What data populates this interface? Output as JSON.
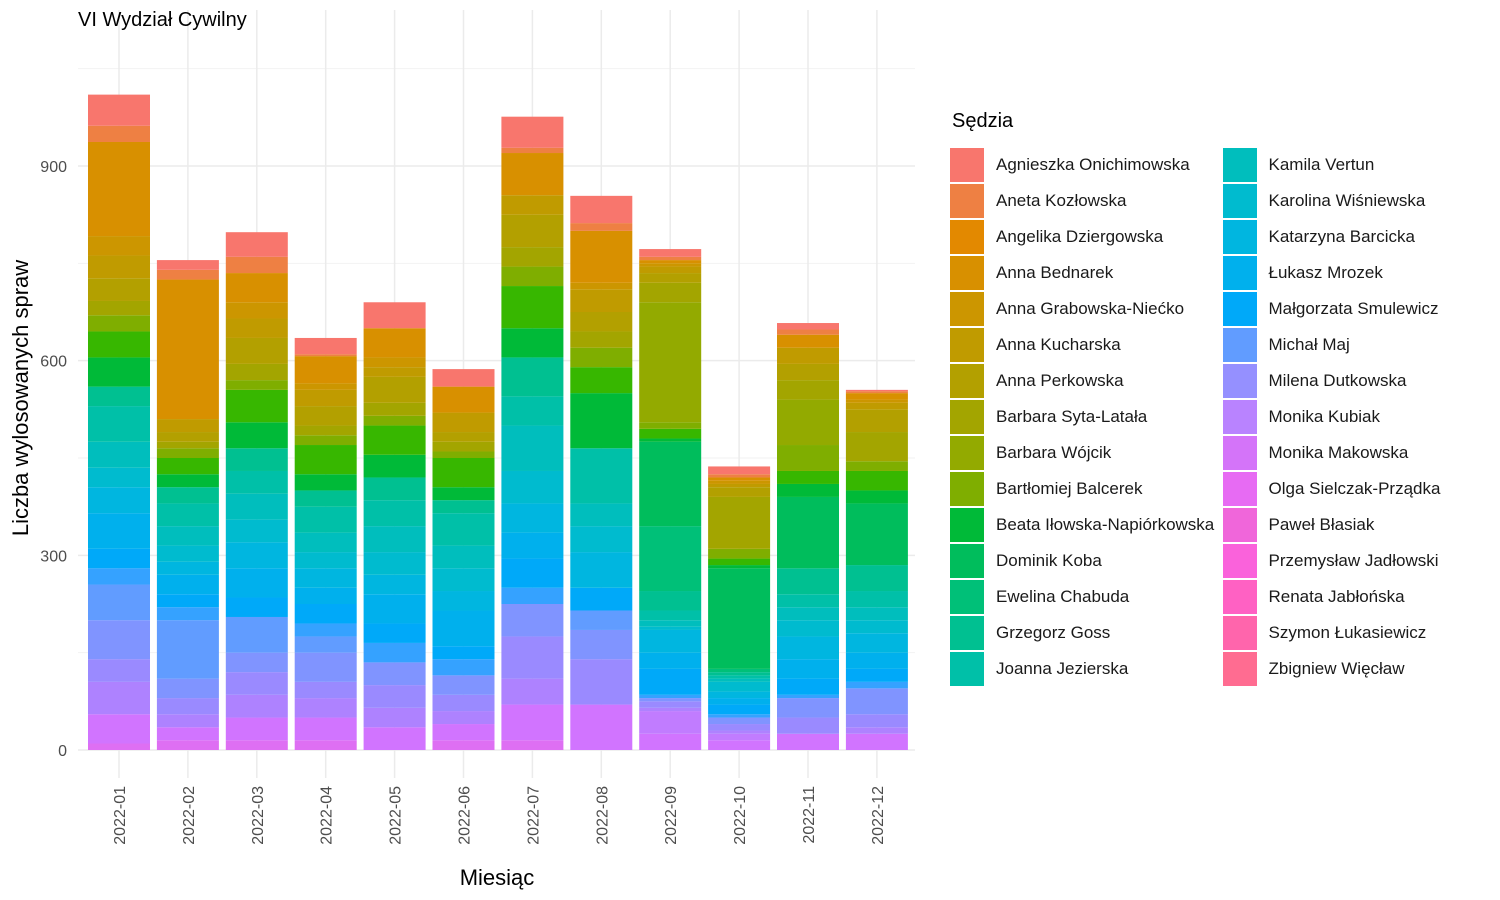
{
  "chart_data": {
    "type": "bar",
    "stacked": true,
    "title": "VI Wydział Cywilny",
    "xlabel": "Miesiąc",
    "ylabel": "Liczba wylosowanych spraw",
    "ylim": [
      0,
      1110
    ],
    "yticks": [
      0,
      300,
      600,
      900
    ],
    "grid": true,
    "legend_position": "right",
    "legend_title": "Sędzia",
    "categories": [
      "2022-01",
      "2022-02",
      "2022-03",
      "2022-04",
      "2022-05",
      "2022-06",
      "2022-07",
      "2022-08",
      "2022-09",
      "2022-10",
      "2022-11",
      "2022-12"
    ],
    "series": [
      {
        "name": "Agnieszka Onichimowska",
        "color": "#F8766D",
        "values": [
          48,
          15,
          38,
          25,
          40,
          27,
          48,
          42,
          12,
          12,
          10,
          2
        ]
      },
      {
        "name": "Aneta Kozłowska",
        "color": "#EE8043",
        "values": [
          25,
          15,
          25,
          3,
          0,
          0,
          8,
          12,
          5,
          5,
          8,
          3
        ]
      },
      {
        "name": "Angelika Dziergowska",
        "color": "#E38900",
        "values": [
          0,
          0,
          0,
          0,
          0,
          0,
          0,
          0,
          0,
          0,
          0,
          0
        ]
      },
      {
        "name": "Anna Bednarek",
        "color": "#D89000",
        "values": [
          145,
          215,
          45,
          42,
          45,
          40,
          65,
          80,
          5,
          5,
          20,
          10
        ]
      },
      {
        "name": "Anna Grabowska-Niećko",
        "color": "#CC9600",
        "values": [
          30,
          0,
          25,
          10,
          15,
          0,
          0,
          10,
          5,
          5,
          0,
          5
        ]
      },
      {
        "name": "Anna Kucharska",
        "color": "#C09B00",
        "values": [
          35,
          20,
          30,
          25,
          15,
          30,
          30,
          35,
          10,
          5,
          25,
          10
        ]
      },
      {
        "name": "Anna Perkowska",
        "color": "#B3A000",
        "values": [
          35,
          15,
          40,
          30,
          40,
          15,
          50,
          30,
          15,
          15,
          25,
          35
        ]
      },
      {
        "name": "Barbara Syta-Latała",
        "color": "#A3A500",
        "values": [
          22,
          10,
          25,
          15,
          20,
          15,
          30,
          25,
          30,
          80,
          30,
          45
        ]
      },
      {
        "name": "Barbara Wójcik",
        "color": "#93AA00",
        "values": [
          0,
          0,
          0,
          0,
          0,
          0,
          0,
          0,
          185,
          0,
          70,
          0
        ]
      },
      {
        "name": "Bartłomiej Balcerek",
        "color": "#7FAE00",
        "values": [
          25,
          15,
          15,
          15,
          15,
          10,
          30,
          30,
          10,
          15,
          40,
          15
        ]
      },
      {
        "name": "Beata Iłowska-Napiórkowska",
        "color": "#65B300",
        "values": [
          0,
          0,
          0,
          0,
          0,
          0,
          0,
          0,
          0,
          0,
          0,
          0
        ]
      },
      {
        "name": "Dominik Koba",
        "color": "#37B700",
        "values": [
          40,
          25,
          50,
          45,
          45,
          45,
          65,
          40,
          15,
          10,
          20,
          30
        ]
      },
      {
        "name": "Ewelina Chabuda",
        "color": "#00BA38",
        "values": [
          45,
          20,
          40,
          25,
          35,
          20,
          45,
          85,
          5,
          5,
          20,
          20
        ]
      },
      {
        "name": "Grzegorz Goss",
        "color": "#00BD5C",
        "values": [
          0,
          0,
          0,
          0,
          0,
          0,
          0,
          0,
          130,
          155,
          110,
          95
        ]
      },
      {
        "name": "Joanna Jezierska",
        "color": "#00C078",
        "values": [
          0,
          0,
          0,
          0,
          0,
          0,
          0,
          0,
          100,
          5,
          0,
          0
        ]
      },
      {
        "name": "Kamila Vertun",
        "color": "#00C091",
        "values": [
          30,
          25,
          35,
          25,
          35,
          20,
          60,
          0,
          30,
          5,
          40,
          40
        ]
      },
      {
        "name": "Karolina Wiśniewska",
        "color": "#00C0A8",
        "values": [
          55,
          35,
          35,
          40,
          40,
          50,
          45,
          85,
          15,
          5,
          20,
          25
        ]
      },
      {
        "name": "Katarzyna Barcicka",
        "color": "#00BEBD",
        "values": [
          40,
          30,
          40,
          30,
          40,
          35,
          70,
          35,
          10,
          5,
          20,
          20
        ]
      },
      {
        "name": "Łukasz Mrozek",
        "color": "#00BBCF",
        "values": [
          30,
          25,
          35,
          25,
          35,
          35,
          50,
          40,
          5,
          15,
          25,
          20
        ]
      },
      {
        "name": "Małgorzata Smulewicz",
        "color": "#00B6E0",
        "values": [
          40,
          20,
          40,
          30,
          30,
          30,
          45,
          55,
          35,
          10,
          35,
          30
        ]
      },
      {
        "name": "Michał Maj",
        "color": "#00B0ED",
        "values": [
          55,
          30,
          45,
          25,
          45,
          55,
          40,
          0,
          25,
          10,
          30,
          25
        ]
      },
      {
        "name": "Milena Dutkowska",
        "color": "#00A9F9",
        "values": [
          30,
          20,
          30,
          30,
          30,
          20,
          45,
          35,
          40,
          15,
          25,
          20
        ]
      },
      {
        "name": "Monika Kubiak",
        "color": "#35A2FF",
        "values": [
          25,
          20,
          0,
          20,
          30,
          25,
          25,
          0,
          5,
          5,
          5,
          10
        ]
      },
      {
        "name": "Monika Makowska",
        "color": "#619CFF",
        "values": [
          55,
          90,
          55,
          25,
          0,
          0,
          0,
          30,
          0,
          0,
          0,
          0
        ]
      },
      {
        "name": "Olga Sielczak-Prządka",
        "color": "#8094FF",
        "values": [
          60,
          30,
          30,
          45,
          35,
          30,
          50,
          45,
          5,
          10,
          30,
          40
        ]
      },
      {
        "name": "Paweł Błasiak",
        "color": "#9A8AFF",
        "values": [
          35,
          25,
          35,
          25,
          35,
          25,
          65,
          70,
          10,
          10,
          25,
          20
        ]
      },
      {
        "name": "Przemysław Jadłowski",
        "color": "#AE82FF",
        "values": [
          50,
          20,
          35,
          30,
          30,
          20,
          40,
          0,
          5,
          5,
          0,
          10
        ]
      },
      {
        "name": "Renata Jabłońska",
        "color": "#C17CFF",
        "values": [
          0,
          0,
          0,
          0,
          0,
          0,
          0,
          0,
          35,
          10,
          0,
          0
        ]
      },
      {
        "name": "Szymon Łukasiewicz",
        "color": "#D174FF",
        "values": [
          45,
          20,
          35,
          35,
          35,
          25,
          55,
          70,
          25,
          15,
          25,
          25
        ]
      },
      {
        "name": "Zbigniew Więcław",
        "color": "#DE6FF3",
        "values": [
          10,
          15,
          15,
          15,
          0,
          15,
          15,
          0,
          0,
          0,
          0,
          0
        ]
      }
    ],
    "lower_series": [
      {
        "name": "Olga Sielczak-Prządka",
        "color": "#E96AE4",
        "values": [
          0,
          0,
          0,
          0,
          0,
          0,
          0,
          0,
          0,
          0,
          0,
          0
        ]
      },
      {
        "name": "Paweł Błasiak",
        "color": "#F066DA",
        "values": [
          0,
          0,
          0,
          0,
          0,
          0,
          0,
          0,
          0,
          0,
          0,
          0
        ]
      }
    ]
  },
  "legend": {
    "title": "Sędzia",
    "col1": [
      {
        "label": "Agnieszka Onichimowska",
        "color": "#F8766D"
      },
      {
        "label": "Aneta Kozłowska",
        "color": "#EE8043"
      },
      {
        "label": "Angelika Dziergowska",
        "color": "#E38900"
      },
      {
        "label": "Anna Bednarek",
        "color": "#D89000"
      },
      {
        "label": "Anna Grabowska-Niećko",
        "color": "#CC9600"
      },
      {
        "label": "Anna Kucharska",
        "color": "#C09B00"
      },
      {
        "label": "Anna Perkowska",
        "color": "#B3A000"
      },
      {
        "label": "Barbara Syta-Latała",
        "color": "#A3A500"
      },
      {
        "label": "Barbara Wójcik",
        "color": "#93AA00"
      },
      {
        "label": "Bartłomiej Balcerek",
        "color": "#7FAE00"
      },
      {
        "label": "Beata Iłowska-Napiórkowska",
        "color": "#00BA38"
      },
      {
        "label": "Dominik Koba",
        "color": "#00BD5C"
      },
      {
        "label": "Ewelina Chabuda",
        "color": "#00C078"
      },
      {
        "label": "Grzegorz Goss",
        "color": "#00C091"
      },
      {
        "label": "Joanna Jezierska",
        "color": "#00C0A8"
      }
    ],
    "col2": [
      {
        "label": "Kamila Vertun",
        "color": "#00BEBD"
      },
      {
        "label": "Karolina Wiśniewska",
        "color": "#00BBCF"
      },
      {
        "label": "Katarzyna Barcicka",
        "color": "#00B6E0"
      },
      {
        "label": "Łukasz Mrozek",
        "color": "#00B0ED"
      },
      {
        "label": "Małgorzata Smulewicz",
        "color": "#00A9F9"
      },
      {
        "label": "Michał Maj",
        "color": "#619CFF"
      },
      {
        "label": "Milena Dutkowska",
        "color": "#9590FF"
      },
      {
        "label": "Monika Kubiak",
        "color": "#B983FF"
      },
      {
        "label": "Monika Makowska",
        "color": "#D474F9"
      },
      {
        "label": "Olga Sielczak-Prządka",
        "color": "#E76BF3"
      },
      {
        "label": "Paweł Błasiak",
        "color": "#F066DA"
      },
      {
        "label": "Przemysław Jadłowski",
        "color": "#FA62DB"
      },
      {
        "label": "Renata Jabłońska",
        "color": "#FF61C3"
      },
      {
        "label": "Szymon Łukasiewicz",
        "color": "#FF65AC"
      },
      {
        "label": "Zbigniew Więcław",
        "color": "#FF6C91"
      }
    ]
  }
}
